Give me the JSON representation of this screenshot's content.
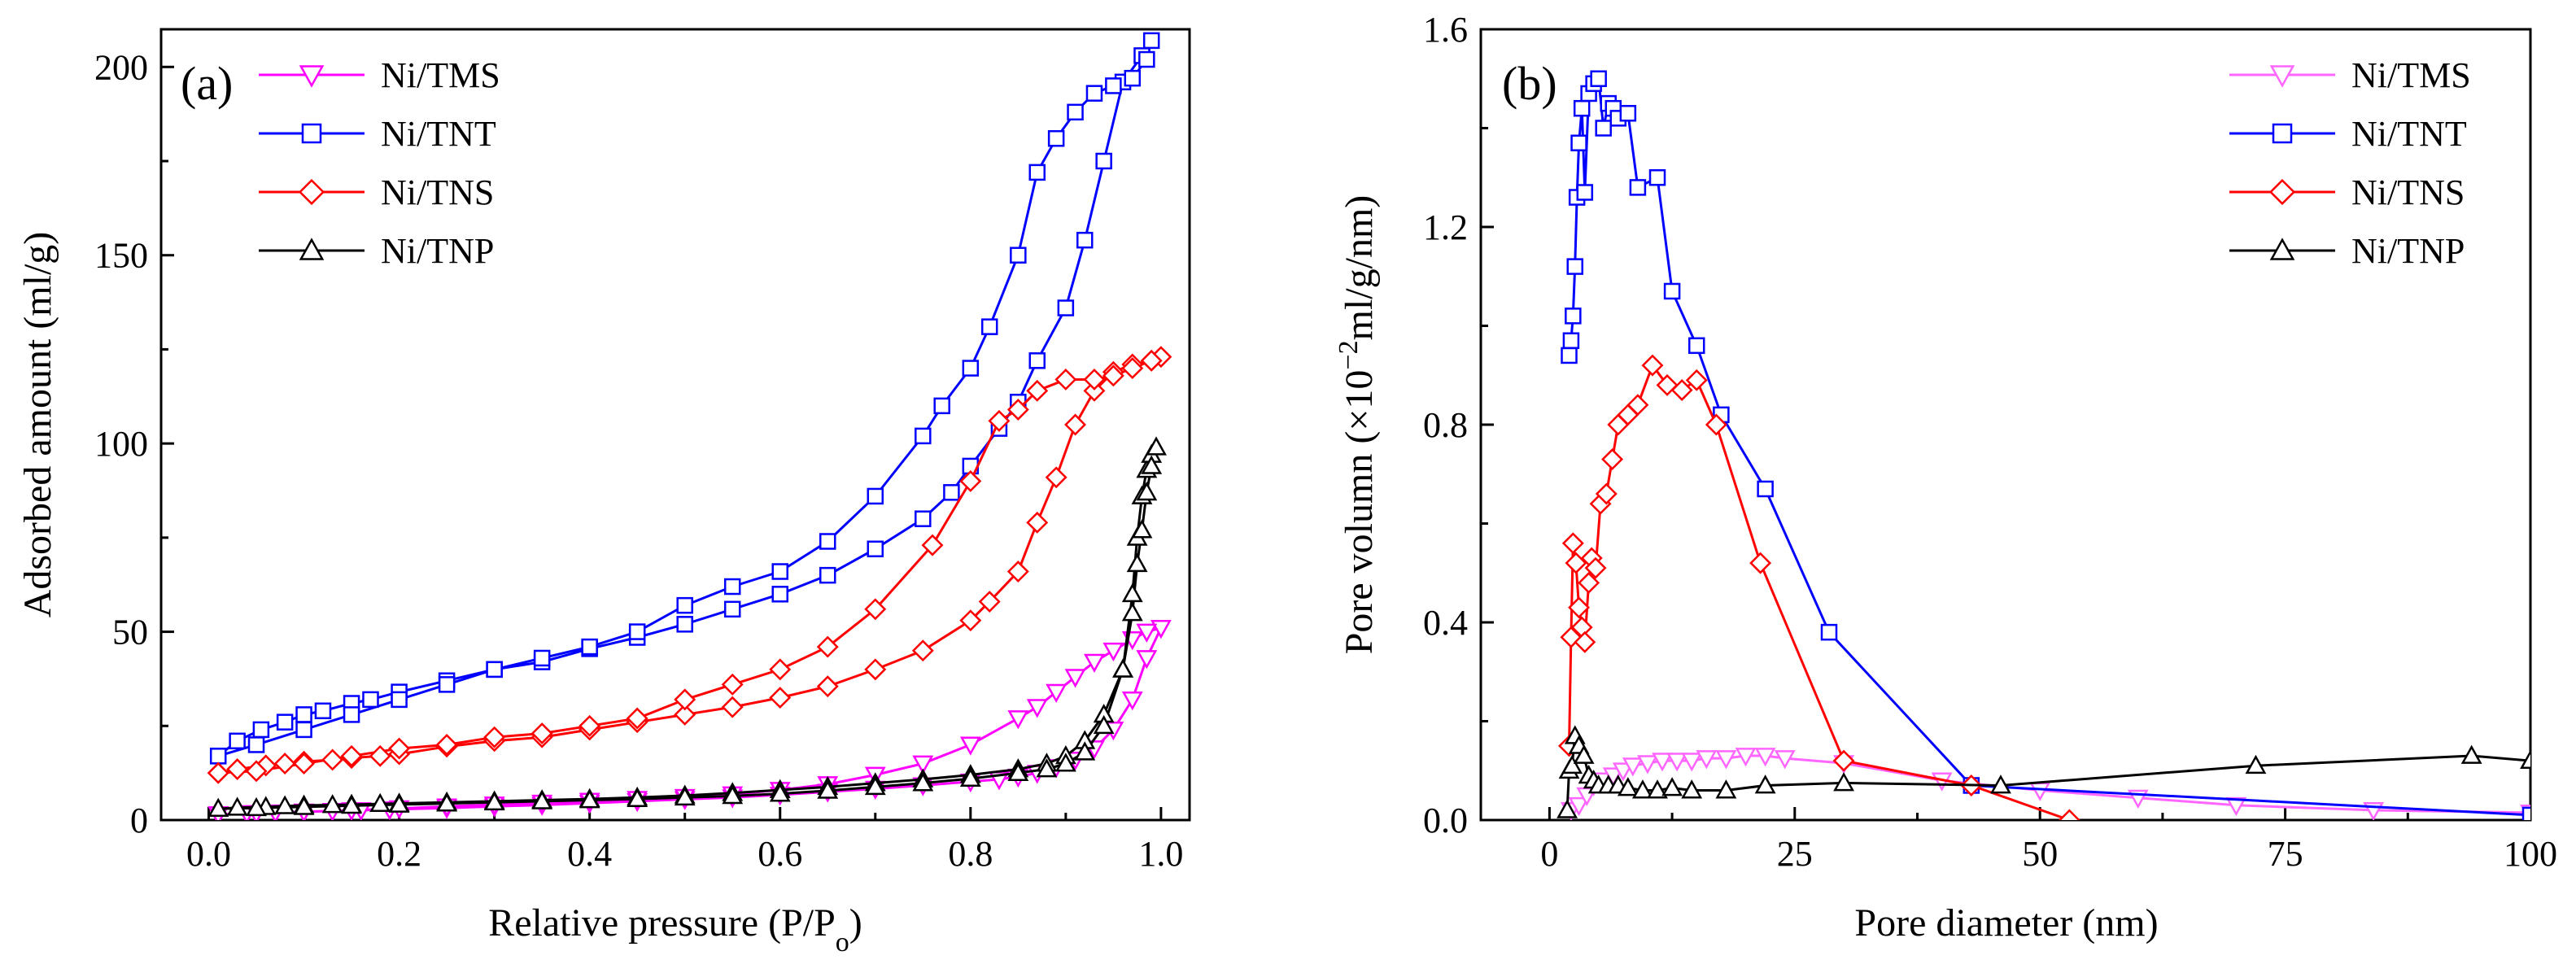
{
  "chart_data": [
    {
      "type": "line",
      "panel_label": "(a)",
      "xlabel": "Relative pressure (P/P",
      "xlabel_sub": "o",
      "xlabel_end": ")",
      "ylabel": "Adsorbed amount (ml/g)",
      "xlim": [
        -0.05,
        1.03
      ],
      "ylim": [
        0,
        210
      ],
      "xticks": [
        0.0,
        0.2,
        0.4,
        0.6,
        0.8,
        1.0
      ],
      "xtick_labels": [
        "0.0",
        "0.2",
        "0.4",
        "0.6",
        "0.8",
        "1.0"
      ],
      "yticks": [
        0,
        50,
        100,
        150,
        200
      ],
      "ytick_labels": [
        "0",
        "50",
        "100",
        "150",
        "200"
      ],
      "legend_position": "top-left",
      "series": [
        {
          "name": "Ni/TMS",
          "color": "#ff00ff",
          "marker": "triangle-down",
          "x": [
            0.01,
            0.04,
            0.07,
            0.1,
            0.13,
            0.16,
            0.19,
            0.25,
            0.3,
            0.35,
            0.4,
            0.45,
            0.5,
            0.55,
            0.6,
            0.65,
            0.7,
            0.75,
            0.8,
            0.83,
            0.85,
            0.87,
            0.89,
            0.91,
            0.93,
            0.95,
            0.97,
            0.985,
            1.0,
            0.985,
            0.97,
            0.95,
            0.93,
            0.91,
            0.89,
            0.87,
            0.85,
            0.8,
            0.75,
            0.7,
            0.65,
            0.6,
            0.55,
            0.5,
            0.45,
            0.4,
            0.35,
            0.3,
            0.25,
            0.2,
            0.15,
            0.1,
            0.05,
            0.01
          ],
          "y": [
            1.5,
            1.8,
            2,
            2.2,
            2.4,
            2.6,
            2.8,
            3.2,
            3.6,
            4,
            4.5,
            5,
            5.5,
            6,
            6.7,
            7.5,
            8.3,
            9.2,
            10.2,
            10.8,
            11.5,
            12.5,
            14,
            16,
            19,
            24,
            32,
            43,
            51,
            50,
            48,
            45,
            42,
            38,
            34,
            30,
            27,
            20,
            15,
            12,
            9.5,
            8,
            6.8,
            6.1,
            5.6,
            5.1,
            4.6,
            4.1,
            3.6,
            3.1,
            2.6,
            2.2,
            1.8,
            1.5
          ]
        },
        {
          "name": "Ni/TNT",
          "color": "#0000ff",
          "marker": "square",
          "x": [
            0.01,
            0.03,
            0.055,
            0.08,
            0.1,
            0.12,
            0.15,
            0.17,
            0.2,
            0.25,
            0.3,
            0.35,
            0.4,
            0.45,
            0.5,
            0.55,
            0.6,
            0.65,
            0.7,
            0.75,
            0.78,
            0.8,
            0.83,
            0.85,
            0.87,
            0.9,
            0.92,
            0.94,
            0.96,
            0.98,
            0.99,
            0.985,
            0.97,
            0.95,
            0.93,
            0.91,
            0.89,
            0.87,
            0.85,
            0.82,
            0.8,
            0.77,
            0.75,
            0.7,
            0.65,
            0.6,
            0.55,
            0.5,
            0.45,
            0.4,
            0.35,
            0.3,
            0.25,
            0.2,
            0.15,
            0.1,
            0.05,
            0.01
          ],
          "y": [
            17,
            21,
            24,
            26,
            28,
            29,
            31,
            32,
            34,
            37,
            40,
            42,
            45.5,
            48.5,
            52,
            56,
            60,
            65,
            72,
            80,
            87,
            94,
            104,
            111,
            122,
            136,
            154,
            175,
            196,
            203,
            207,
            202,
            197,
            195,
            193,
            188,
            181,
            172,
            150,
            131,
            120,
            110,
            102,
            86,
            74,
            66,
            62,
            57,
            50,
            46,
            43,
            40,
            36,
            32,
            28,
            24,
            20,
            17
          ]
        },
        {
          "name": "Ni/TNS",
          "color": "#ff0000",
          "marker": "diamond",
          "x": [
            0.01,
            0.03,
            0.06,
            0.08,
            0.1,
            0.13,
            0.15,
            0.18,
            0.2,
            0.25,
            0.3,
            0.35,
            0.4,
            0.45,
            0.5,
            0.55,
            0.6,
            0.65,
            0.7,
            0.75,
            0.8,
            0.82,
            0.85,
            0.87,
            0.89,
            0.91,
            0.93,
            0.95,
            0.97,
            0.99,
            1.0,
            0.99,
            0.97,
            0.95,
            0.93,
            0.9,
            0.87,
            0.85,
            0.83,
            0.8,
            0.76,
            0.7,
            0.65,
            0.6,
            0.55,
            0.5,
            0.45,
            0.4,
            0.35,
            0.3,
            0.25,
            0.2,
            0.15,
            0.1,
            0.05,
            0.01
          ],
          "y": [
            12.5,
            13.5,
            14.5,
            15,
            15.5,
            16,
            16.5,
            17,
            17.5,
            19.5,
            21,
            22,
            24,
            26,
            28,
            30,
            32.5,
            35.5,
            40,
            45,
            53,
            58,
            66,
            79,
            91,
            105,
            114,
            119,
            121,
            122,
            123,
            122,
            120,
            118,
            117,
            117,
            114,
            109,
            106,
            90,
            73,
            56,
            46,
            40,
            36,
            32,
            27,
            25,
            23,
            22,
            20,
            19,
            17,
            15,
            13,
            12.5
          ]
        },
        {
          "name": "Ni/TNP",
          "color": "#000000",
          "marker": "triangle-up",
          "x": [
            0.01,
            0.03,
            0.06,
            0.08,
            0.1,
            0.13,
            0.15,
            0.18,
            0.2,
            0.25,
            0.3,
            0.35,
            0.4,
            0.45,
            0.5,
            0.55,
            0.6,
            0.65,
            0.7,
            0.75,
            0.8,
            0.85,
            0.88,
            0.9,
            0.92,
            0.94,
            0.96,
            0.97,
            0.975,
            0.98,
            0.985,
            0.99,
            0.995,
            0.99,
            0.985,
            0.98,
            0.975,
            0.97,
            0.96,
            0.94,
            0.92,
            0.9,
            0.88,
            0.85,
            0.8,
            0.75,
            0.7,
            0.65,
            0.6,
            0.55,
            0.5,
            0.45,
            0.4,
            0.35,
            0.3,
            0.25,
            0.2,
            0.15,
            0.1,
            0.05,
            0.01
          ],
          "y": [
            3,
            3.3,
            3.5,
            3.7,
            3.9,
            4,
            4.1,
            4.3,
            4.4,
            4.7,
            5,
            5.3,
            5.6,
            6,
            6.5,
            7.2,
            8,
            8.8,
            9.8,
            10.8,
            12,
            13.5,
            15,
            17,
            21,
            28,
            40,
            60,
            75,
            86,
            93,
            97,
            99,
            94,
            87,
            77,
            68,
            55,
            40,
            25,
            18,
            15,
            13.5,
            12.5,
            11,
            9.8,
            8.8,
            7.8,
            7,
            6.4,
            6,
            5.6,
            5.3,
            5,
            4.7,
            4.4,
            4.1,
            3.8,
            3.5,
            3.2,
            3
          ]
        }
      ]
    },
    {
      "type": "line",
      "panel_label": "(b)",
      "xlabel": "Pore diameter (nm)",
      "ylabel_pre": "Pore volumn (×10",
      "ylabel_sup": "−2",
      "ylabel_post": "ml/g/nm)",
      "xlim": [
        -7,
        100
      ],
      "ylim": [
        0,
        1.6
      ],
      "xticks": [
        0,
        25,
        50,
        75,
        100
      ],
      "xtick_labels": [
        "0",
        "25",
        "50",
        "75",
        "100"
      ],
      "yticks": [
        0.0,
        0.4,
        0.8,
        1.2,
        1.6
      ],
      "ytick_labels": [
        "0.0",
        "0.4",
        "0.8",
        "1.2",
        "1.6"
      ],
      "legend_position": "top-right",
      "series": [
        {
          "name": "Ni/TMS",
          "color": "#ff66ff",
          "marker": "triangle-down",
          "x": [
            2.2,
            3,
            3.8,
            4.5,
            5.5,
            6.5,
            7.5,
            8.5,
            10,
            11.5,
            13,
            14.5,
            16,
            18,
            20,
            22,
            24,
            30,
            40,
            50,
            60,
            70,
            84,
            100
          ],
          "y": [
            0.02,
            0.03,
            0.05,
            0.07,
            0.08,
            0.09,
            0.1,
            0.11,
            0.115,
            0.12,
            0.12,
            0.12,
            0.125,
            0.125,
            0.13,
            0.13,
            0.125,
            0.115,
            0.08,
            0.06,
            0.045,
            0.03,
            0.02,
            0.015
          ]
        },
        {
          "name": "Ni/TNT",
          "color": "#0000ff",
          "marker": "square",
          "x": [
            2,
            2.2,
            2.4,
            2.6,
            2.8,
            3,
            3.3,
            3.6,
            4,
            4.5,
            5,
            5.5,
            6,
            6.5,
            7,
            8,
            9,
            11,
            12.5,
            15,
            17.5,
            22,
            28.5,
            43,
            100
          ],
          "y": [
            0.94,
            0.97,
            1.02,
            1.12,
            1.26,
            1.37,
            1.44,
            1.27,
            1.47,
            1.49,
            1.5,
            1.4,
            1.45,
            1.44,
            1.42,
            1.43,
            1.28,
            1.3,
            1.07,
            0.96,
            0.82,
            0.67,
            0.38,
            0.07,
            0.01
          ]
        },
        {
          "name": "Ni/TNS",
          "color": "#ff0000",
          "marker": "diamond",
          "x": [
            2,
            2.2,
            2.4,
            2.7,
            3,
            3.3,
            3.6,
            4,
            4.3,
            4.7,
            5.2,
            5.8,
            6.4,
            7,
            8,
            9,
            10.5,
            12,
            13.5,
            15,
            17,
            21.5,
            30,
            43,
            53
          ],
          "y": [
            0.15,
            0.37,
            0.56,
            0.52,
            0.43,
            0.39,
            0.36,
            0.48,
            0.53,
            0.51,
            0.64,
            0.66,
            0.73,
            0.8,
            0.82,
            0.84,
            0.92,
            0.88,
            0.87,
            0.89,
            0.8,
            0.52,
            0.12,
            0.07,
            0
          ]
        },
        {
          "name": "Ni/TNP",
          "color": "#000000",
          "marker": "triangle-up",
          "x": [
            1.8,
            2,
            2.3,
            2.6,
            3,
            3.5,
            4,
            4.5,
            5,
            6,
            7,
            8,
            9.5,
            11,
            12.5,
            14.5,
            18,
            22,
            30,
            46,
            72,
            94,
            100
          ],
          "y": [
            0.02,
            0.1,
            0.11,
            0.17,
            0.15,
            0.13,
            0.09,
            0.08,
            0.07,
            0.07,
            0.07,
            0.065,
            0.06,
            0.06,
            0.065,
            0.06,
            0.06,
            0.07,
            0.075,
            0.07,
            0.11,
            0.13,
            0.12
          ]
        }
      ]
    }
  ]
}
